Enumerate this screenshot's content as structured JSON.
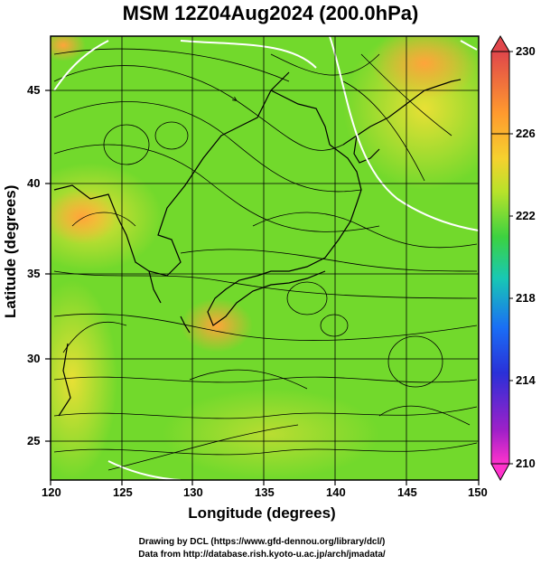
{
  "title": "MSM 12Z04Aug2024 (200.0hPa)",
  "x_axis": {
    "label": "Longitude (degrees)",
    "ticks": [
      "120",
      "125",
      "130",
      "135",
      "140",
      "145",
      "150"
    ]
  },
  "y_axis": {
    "label": "Latitude  (degrees)",
    "ticks": [
      "45",
      "40",
      "35",
      "30",
      "25"
    ]
  },
  "colorbar": {
    "ticks": [
      "230",
      "226",
      "222",
      "218",
      "214",
      "210"
    ],
    "colors": [
      "#e0464b",
      "#ff9a2e",
      "#f5d12e",
      "#b8e22a",
      "#3cd240",
      "#18c8b4",
      "#1a6ef5",
      "#2a30d8",
      "#a020c8",
      "#ff33cc"
    ]
  },
  "footer": {
    "line1": "Drawing by DCL (https://www.gfd-dennou.org/library/dcl/)",
    "line2": "Data from http://database.rish.kyoto-u.ac.jp/arch/jmadata/"
  }
}
